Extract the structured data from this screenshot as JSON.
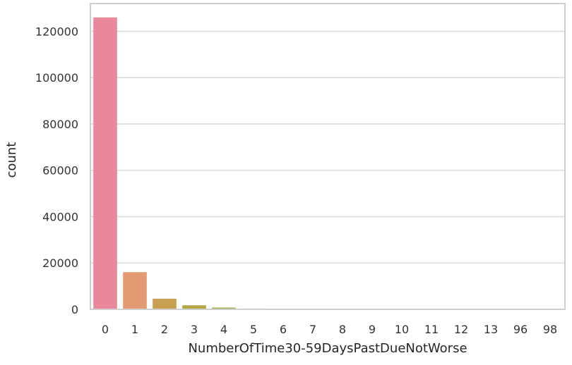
{
  "chart_data": {
    "type": "bar",
    "title": "",
    "xlabel": "NumberOfTime30-59DaysPastDueNotWorse",
    "ylabel": "count",
    "categories": [
      "0",
      "1",
      "2",
      "3",
      "4",
      "5",
      "6",
      "7",
      "8",
      "9",
      "10",
      "11",
      "12",
      "13",
      "96",
      "98"
    ],
    "values": [
      126018,
      16033,
      4598,
      1754,
      747,
      342,
      140,
      54,
      25,
      12,
      4,
      1,
      2,
      1,
      5,
      264
    ],
    "ylim": [
      0,
      132000
    ],
    "yticks": [
      0,
      20000,
      40000,
      60000,
      80000,
      100000,
      120000
    ],
    "grid": true,
    "colors": [
      "#e9889a",
      "#e39a72",
      "#c9a051",
      "#b7a743",
      "#a2ad44",
      "#8ab345",
      "#56b349",
      "#4db57a",
      "#4cb397",
      "#4eb1aa",
      "#4fb0bf",
      "#55add5",
      "#8ca2e2",
      "#b493e4",
      "#d885e0",
      "#e681c0"
    ]
  }
}
